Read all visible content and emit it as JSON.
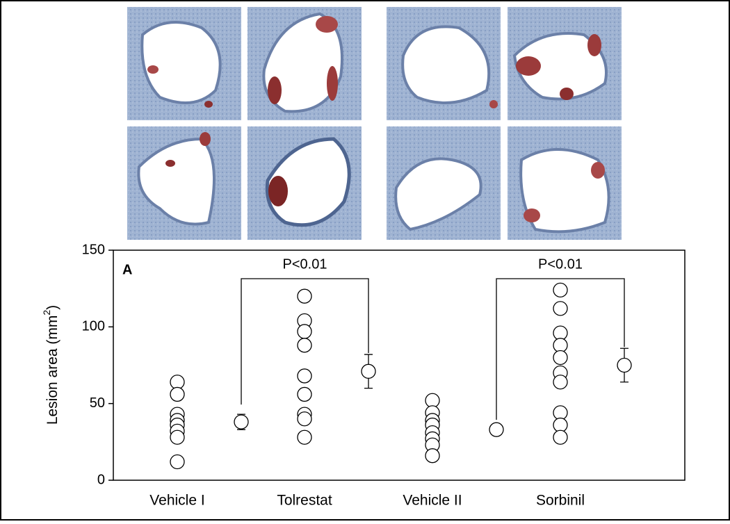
{
  "chart_data": {
    "type": "scatter",
    "panel_label": "A",
    "y_label": {
      "text": "Lesion area (mm",
      "superscript": "2",
      "suffix": ")"
    },
    "categories": [
      "Vehicle I",
      "Tolrestat",
      "Vehicle II",
      "Sorbinil"
    ],
    "groups": [
      {
        "values": [
          64,
          56,
          43,
          39,
          36,
          32,
          28,
          12
        ],
        "mean": 38,
        "error": 5
      },
      {
        "values": [
          120,
          104,
          97,
          88,
          68,
          56,
          43,
          40,
          28
        ],
        "mean": 71,
        "error": 11
      },
      {
        "values": [
          52,
          44,
          39,
          36,
          31,
          27,
          23,
          16
        ],
        "mean": 33,
        "error": null
      },
      {
        "values": [
          124,
          112,
          96,
          88,
          80,
          70,
          64,
          44,
          36,
          28
        ],
        "mean": 75,
        "error": 11
      }
    ],
    "annotations": [
      "P<0.01",
      "P<0.01"
    ],
    "ylim": [
      0,
      150
    ],
    "yticks": [
      0,
      50,
      100,
      150
    ]
  }
}
